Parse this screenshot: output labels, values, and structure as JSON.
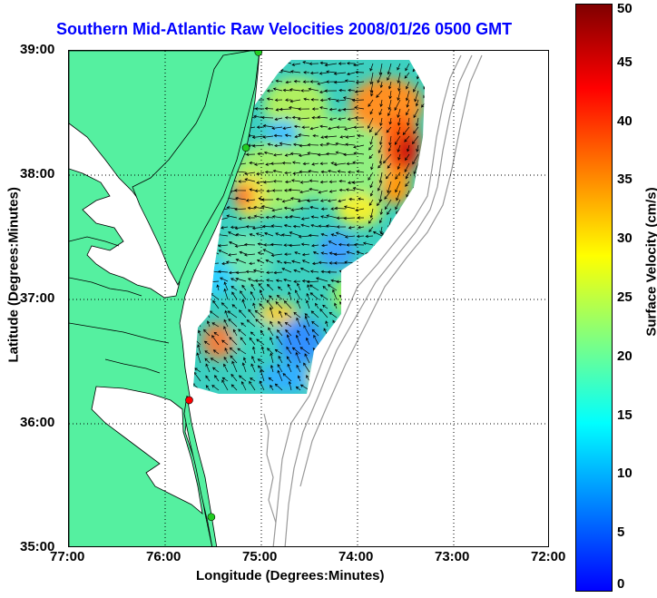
{
  "title": "Southern Mid-Atlantic Raw Velocities 2008/01/26 0500 GMT",
  "xlabel": "Longitude (Degrees:Minutes)",
  "ylabel": "Latitude (Degrees:Minutes)",
  "colorbar": {
    "label": "Surface Velocity (cm/s)",
    "ticks": [
      "50",
      "45",
      "40",
      "35",
      "30",
      "25",
      "20",
      "15",
      "10",
      "5",
      "0"
    ],
    "range": [
      0,
      50
    ],
    "colors": [
      "#0000ff",
      "#0080ff",
      "#00ffff",
      "#80ff80",
      "#ffff00",
      "#ff8000",
      "#ff0000",
      "#800000"
    ]
  },
  "x_ticks": [
    "77:00",
    "76:00",
    "75:00",
    "74:00",
    "73:00",
    "72:00"
  ],
  "y_ticks": [
    "39:00",
    "38:00",
    "37:00",
    "36:00",
    "35:00"
  ],
  "colors": {
    "land": "#55f0a0",
    "water": "#ffffff",
    "bathymetry": "#999999",
    "grid": "#000000",
    "title": "#0000ff",
    "station_green": "#22cc22",
    "station_red": "#ff0000"
  },
  "map": {
    "lon_range": [
      -77,
      -72
    ],
    "lat_range": [
      35,
      39
    ],
    "stations": [
      {
        "lon": -75.03,
        "lat": 38.99,
        "color": "green"
      },
      {
        "lon": -75.16,
        "lat": 38.22,
        "color": "green"
      },
      {
        "lon": -75.75,
        "lat": 36.19,
        "color": "red"
      },
      {
        "lon": -75.52,
        "lat": 35.25,
        "color": "green"
      }
    ]
  }
}
